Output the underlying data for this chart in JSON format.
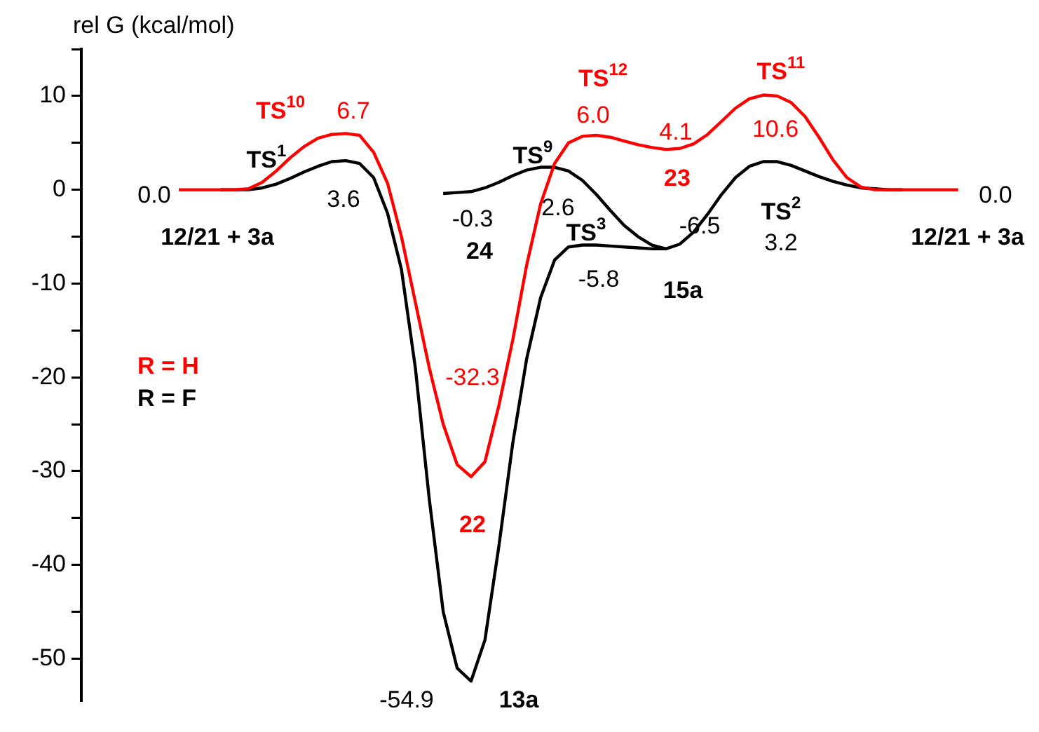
{
  "chart_data": {
    "type": "line",
    "ylabel": "rel G (kcal/mol)",
    "categories": [
      null,
      null,
      null,
      null,
      null,
      null,
      null,
      null,
      null,
      null,
      null,
      null,
      null,
      null,
      null,
      null,
      null,
      null,
      null,
      null,
      null,
      null,
      null,
      null,
      null,
      null,
      null,
      null,
      null,
      null,
      null,
      null,
      null,
      null,
      null,
      null,
      null,
      null,
      null,
      null,
      null,
      null,
      null,
      null,
      null,
      null,
      null,
      null,
      null,
      null,
      null,
      null,
      null,
      null,
      null,
      null,
      null,
      null,
      null,
      null,
      null,
      null,
      null,
      null,
      null,
      null,
      null,
      null,
      null
    ],
    "ylim": [
      -54.5,
      15
    ],
    "yticks": [
      {
        "value": -50,
        "label": "-50"
      },
      {
        "value": -45,
        "label": null
      },
      {
        "value": -40,
        "label": "-40"
      },
      {
        "value": -35,
        "label": null
      },
      {
        "value": -30,
        "label": "-30"
      },
      {
        "value": -25,
        "label": null
      },
      {
        "value": -20,
        "label": "-20"
      },
      {
        "value": -15,
        "label": null
      },
      {
        "value": -10,
        "label": "-10"
      },
      {
        "value": -5,
        "label": null
      },
      {
        "value": 0,
        "label": "0"
      },
      {
        "value": 5,
        "label": null
      },
      {
        "value": 10,
        "label": "10"
      },
      {
        "value": 15,
        "label": null
      }
    ],
    "tick_labels": "y",
    "grid": false,
    "legend": false,
    "marker": "none",
    "line_style": "solid",
    "series": [
      {
        "name": "R = H",
        "color": "#ff0000",
        "values": [
          null,
          null,
          null,
          null,
          null,
          null,
          null,
          0,
          0,
          0,
          0,
          0,
          0.1,
          0.8,
          2.0,
          3.4,
          4.6,
          5.5,
          5.9,
          6.0,
          5.8,
          4.0,
          0.7,
          -5,
          -12,
          -19,
          -25,
          -29.3,
          -30.6,
          -29,
          -23,
          -16,
          -8,
          -1.5,
          2.8,
          5.0,
          5.7,
          5.8,
          5.6,
          5.2,
          4.8,
          4.5,
          4.3,
          4.4,
          4.9,
          5.9,
          7.3,
          8.7,
          9.7,
          10.1,
          10.0,
          9.3,
          7.8,
          5.6,
          3.2,
          1.3,
          0.3,
          0,
          0,
          0,
          0,
          0,
          0,
          0,
          null,
          null,
          null,
          null,
          null
        ]
      },
      {
        "name": "R = F",
        "color": "#000000",
        "values": [
          null,
          null,
          null,
          null,
          null,
          null,
          null,
          null,
          null,
          null,
          0,
          0,
          0,
          0.2,
          0.6,
          1.2,
          1.9,
          2.5,
          3.0,
          3.1,
          2.8,
          1.3,
          -2.5,
          -8.5,
          -19,
          -33,
          -45,
          -51,
          -52.4,
          -48,
          -38,
          -27,
          -18,
          -11.5,
          -7.5,
          -6.1,
          -5.9,
          -5.9,
          -6.0,
          -6.1,
          -6.2,
          -6.3,
          -6.3,
          -5.8,
          -4.5,
          -2.6,
          -0.5,
          1.3,
          2.5,
          3.0,
          3.0,
          2.6,
          2.0,
          1.4,
          0.9,
          0.5,
          0.2,
          0.1,
          0,
          0,
          null,
          null,
          null,
          null,
          null,
          null,
          null,
          null,
          null
        ]
      },
      {
        "color": "#000000",
        "values": [
          null,
          null,
          null,
          null,
          null,
          null,
          null,
          null,
          null,
          null,
          null,
          null,
          null,
          null,
          null,
          null,
          null,
          null,
          null,
          null,
          null,
          null,
          null,
          null,
          null,
          null,
          -0.4,
          -0.3,
          -0.2,
          0.2,
          0.8,
          1.5,
          2.1,
          2.4,
          2.4,
          2.0,
          1.0,
          -0.5,
          -2.2,
          -3.8,
          -5.0,
          -5.9,
          -6.3,
          null,
          null,
          null,
          null,
          null,
          null,
          null,
          null,
          null,
          null,
          null,
          null,
          null,
          null,
          null,
          null,
          null,
          null,
          null,
          null,
          null,
          null,
          null,
          null,
          null,
          null
        ]
      }
    ],
    "annotations": [
      "TS$^{10}$",
      "6.7",
      "TS$^{1}$",
      "3.6",
      "0.0",
      "12/21 + 3a",
      "-0.3",
      "24",
      "-32.3",
      "22",
      "-54.9",
      "13a",
      "TS$^{9}$",
      "2.6",
      "TS$^{12}$",
      "6.0",
      "4.1",
      "23",
      "TS$^{11}$",
      "10.6",
      "TS$^{3}$",
      "-5.8",
      "-6.5",
      "15a",
      "TS$^{2}$",
      "3.2",
      "0.0",
      "12/21 + 3a"
    ]
  }
}
